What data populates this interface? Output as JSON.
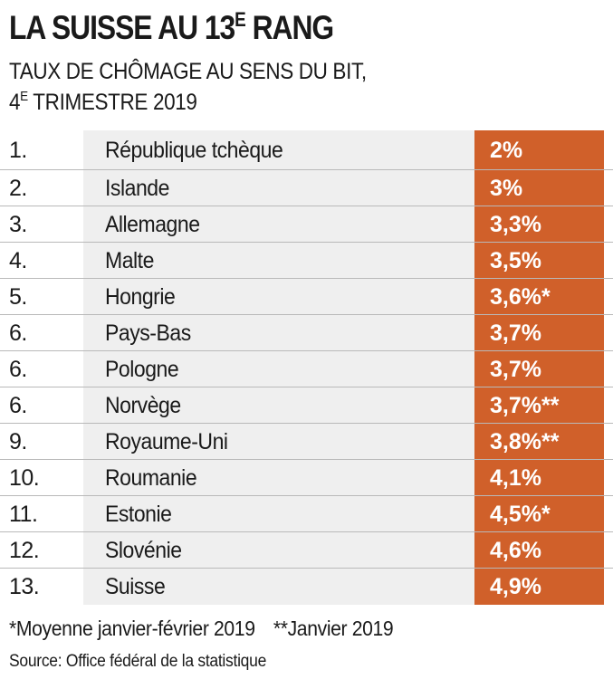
{
  "title": {
    "main": "LA SUISSE AU 13",
    "sup": "E",
    "end": " RANG"
  },
  "subtitle": {
    "line1": "TAUX DE CHÔMAGE AU SENS DU BIT,",
    "line2_prefix": "4",
    "line2_sup": "E",
    "line2_rest": " TRIMESTRE 2019"
  },
  "colors": {
    "value_band": "#d0602a",
    "country_band": "#efefef"
  },
  "chart_data": {
    "type": "table",
    "columns": [
      "rank",
      "country",
      "rate"
    ],
    "rows": [
      {
        "rank": "1.",
        "country": "République tchèque",
        "value": 2.0,
        "label": "2%"
      },
      {
        "rank": "2.",
        "country": "Islande",
        "value": 3.0,
        "label": "3%"
      },
      {
        "rank": "3.",
        "country": "Allemagne",
        "value": 3.3,
        "label": "3,3%"
      },
      {
        "rank": "4.",
        "country": "Malte",
        "value": 3.5,
        "label": "3,5%"
      },
      {
        "rank": "5.",
        "country": "Hongrie",
        "value": 3.6,
        "label": "3,6%*"
      },
      {
        "rank": "6.",
        "country": "Pays-Bas",
        "value": 3.7,
        "label": "3,7%"
      },
      {
        "rank": "6.",
        "country": "Pologne",
        "value": 3.7,
        "label": "3,7%"
      },
      {
        "rank": "6.",
        "country": "Norvège",
        "value": 3.7,
        "label": "3,7%**"
      },
      {
        "rank": "9.",
        "country": "Royaume-Uni",
        "value": 3.8,
        "label": "3,8%**"
      },
      {
        "rank": "10.",
        "country": "Roumanie",
        "value": 4.1,
        "label": "4,1%"
      },
      {
        "rank": "11.",
        "country": "Estonie",
        "value": 4.5,
        "label": "4,5%*"
      },
      {
        "rank": "12.",
        "country": "Slovénie",
        "value": 4.6,
        "label": "4,6%"
      },
      {
        "rank": "13.",
        "country": "Suisse",
        "value": 4.9,
        "label": "4,9%"
      }
    ]
  },
  "footnotes": {
    "single": "*Moyenne janvier-février 2019",
    "double": "**Janvier 2019"
  },
  "source": "Source: Office fédéral de la statistique"
}
